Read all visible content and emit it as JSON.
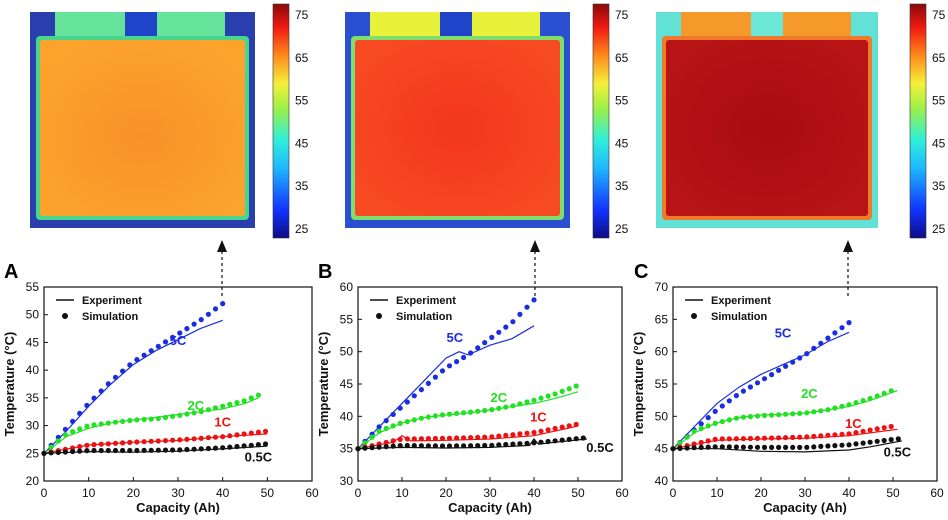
{
  "colors": {
    "s5C": "#1a2ee0",
    "s2C": "#22e022",
    "s1C": "#ee1111",
    "s05C": "#111111",
    "axis": "#111111"
  },
  "legend": {
    "experiment": "Experiment",
    "simulation": "Simulation"
  },
  "colorbar": {
    "min": 25,
    "max": 75,
    "ticks": [
      "75",
      "65",
      "55",
      "45",
      "35",
      "25"
    ]
  },
  "heatmaps": [
    {
      "body_color": "#fb9b2a",
      "tab_color": "#66e39a",
      "gap_color": "#1f43c9",
      "edge_color": "#48d58e",
      "frame_color": "#2a3fae"
    },
    {
      "body_color": "#f63c1e",
      "tab_color": "#e8f23a",
      "gap_color": "#1f43c9",
      "edge_color": "#7ee06a",
      "frame_color": "#2a4fd0"
    },
    {
      "body_color": "#b30f12",
      "tab_color": "#f59a2a",
      "gap_color": "#6de8d8",
      "edge_color": "#f07a2a",
      "frame_color": "#62e2d6"
    }
  ],
  "chart_data": [
    {
      "type": "line",
      "panel": "A",
      "xlabel": "Capacity (Ah)",
      "ylabel": "Temperature (°C)",
      "xlim": [
        0,
        60
      ],
      "ylim": [
        20,
        55
      ],
      "xticks": [
        "0",
        "10",
        "20",
        "30",
        "40",
        "50",
        "60"
      ],
      "yticks": [
        "20",
        "25",
        "30",
        "35",
        "40",
        "45",
        "50",
        "55"
      ],
      "series": [
        {
          "name": "5C",
          "experiment": [
            [
              0,
              25
            ],
            [
              5,
              29
            ],
            [
              10,
              33.5
            ],
            [
              15,
              37.5
            ],
            [
              20,
              41
            ],
            [
              25,
              43.5
            ],
            [
              30,
              45.5
            ],
            [
              35,
              47.5
            ],
            [
              40,
              49
            ]
          ],
          "simulation": [
            [
              0,
              25
            ],
            [
              5,
              29.5
            ],
            [
              10,
              34
            ],
            [
              15,
              38
            ],
            [
              20,
              41.5
            ],
            [
              25,
              44
            ],
            [
              30,
              46.5
            ],
            [
              35,
              49
            ],
            [
              40,
              52
            ]
          ]
        },
        {
          "name": "2C",
          "experiment": [
            [
              0,
              25
            ],
            [
              5,
              28
            ],
            [
              10,
              29.5
            ],
            [
              15,
              30.5
            ],
            [
              20,
              31
            ],
            [
              25,
              31.5
            ],
            [
              30,
              32
            ],
            [
              35,
              32.5
            ],
            [
              40,
              33
            ],
            [
              45,
              34
            ],
            [
              48,
              35
            ]
          ],
          "simulation": [
            [
              0,
              25
            ],
            [
              5,
              28.5
            ],
            [
              10,
              30
            ],
            [
              15,
              30.5
            ],
            [
              20,
              31
            ],
            [
              25,
              31.2
            ],
            [
              30,
              31.8
            ],
            [
              35,
              32.5
            ],
            [
              40,
              33.5
            ],
            [
              45,
              34.5
            ],
            [
              48,
              35.5
            ]
          ]
        },
        {
          "name": "1C",
          "experiment": [
            [
              0,
              25
            ],
            [
              10,
              26.5
            ],
            [
              20,
              27
            ],
            [
              30,
              27.3
            ],
            [
              40,
              28
            ],
            [
              50,
              28.5
            ]
          ],
          "simulation": [
            [
              0,
              25
            ],
            [
              10,
              26.5
            ],
            [
              20,
              27
            ],
            [
              30,
              27.4
            ],
            [
              40,
              28
            ],
            [
              50,
              29
            ]
          ]
        },
        {
          "name": "0.5C",
          "experiment": [
            [
              0,
              25
            ],
            [
              10,
              25.3
            ],
            [
              20,
              25.2
            ],
            [
              30,
              25.4
            ],
            [
              40,
              25.8
            ],
            [
              50,
              26.3
            ]
          ],
          "simulation": [
            [
              0,
              25
            ],
            [
              10,
              25.5
            ],
            [
              20,
              25.5
            ],
            [
              30,
              25.6
            ],
            [
              40,
              26
            ],
            [
              50,
              26.7
            ]
          ]
        }
      ],
      "labels": {
        "5C": "5C",
        "2C": "2C",
        "1C": "1C",
        "0.5C": "0.5C"
      }
    },
    {
      "type": "line",
      "panel": "B",
      "xlabel": "Capacity (Ah)",
      "ylabel": "Temperature (°C)",
      "xlim": [
        0,
        60
      ],
      "ylim": [
        30,
        60
      ],
      "xticks": [
        "0",
        "10",
        "20",
        "30",
        "40",
        "50",
        "60"
      ],
      "yticks": [
        "30",
        "35",
        "40",
        "45",
        "50",
        "55",
        "60"
      ],
      "series": [
        {
          "name": "5C",
          "experiment": [
            [
              0,
              35
            ],
            [
              5,
              38.5
            ],
            [
              10,
              42
            ],
            [
              15,
              45.5
            ],
            [
              20,
              49
            ],
            [
              23,
              50
            ],
            [
              25,
              49.5
            ],
            [
              30,
              51
            ],
            [
              35,
              52
            ],
            [
              40,
              54
            ]
          ],
          "simulation": [
            [
              0,
              35
            ],
            [
              5,
              38.5
            ],
            [
              10,
              41.5
            ],
            [
              15,
              44.5
            ],
            [
              20,
              47.5
            ],
            [
              25,
              49.5
            ],
            [
              30,
              52
            ],
            [
              35,
              54.5
            ],
            [
              40,
              58
            ]
          ]
        },
        {
          "name": "2C",
          "experiment": [
            [
              0,
              35
            ],
            [
              5,
              37.5
            ],
            [
              10,
              39
            ],
            [
              15,
              39.8
            ],
            [
              20,
              40.2
            ],
            [
              25,
              40.5
            ],
            [
              30,
              41
            ],
            [
              35,
              41.5
            ],
            [
              40,
              42
            ],
            [
              45,
              42.8
            ],
            [
              50,
              43.8
            ]
          ],
          "simulation": [
            [
              0,
              35
            ],
            [
              5,
              37.8
            ],
            [
              10,
              39
            ],
            [
              15,
              39.8
            ],
            [
              20,
              40.3
            ],
            [
              25,
              40.6
            ],
            [
              30,
              41
            ],
            [
              35,
              41.6
            ],
            [
              40,
              42.5
            ],
            [
              45,
              43.5
            ],
            [
              50,
              44.8
            ]
          ]
        },
        {
          "name": "1C",
          "experiment": [
            [
              0,
              35
            ],
            [
              8,
              36
            ],
            [
              10,
              37
            ],
            [
              12,
              36.2
            ],
            [
              20,
              36.3
            ],
            [
              30,
              36.5
            ],
            [
              40,
              37
            ],
            [
              50,
              38.5
            ]
          ],
          "simulation": [
            [
              0,
              35
            ],
            [
              10,
              36.5
            ],
            [
              20,
              36.6
            ],
            [
              30,
              36.8
            ],
            [
              40,
              37.5
            ],
            [
              50,
              38.8
            ]
          ]
        },
        {
          "name": "0.5C",
          "experiment": [
            [
              0,
              35
            ],
            [
              10,
              35.2
            ],
            [
              20,
              35.1
            ],
            [
              30,
              35.2
            ],
            [
              39,
              35.5
            ],
            [
              40,
              36.5
            ],
            [
              41,
              35.7
            ],
            [
              45,
              36
            ],
            [
              52,
              36.5
            ]
          ],
          "simulation": [
            [
              0,
              35
            ],
            [
              10,
              35.5
            ],
            [
              20,
              35.4
            ],
            [
              30,
              35.5
            ],
            [
              40,
              35.9
            ],
            [
              52,
              36.7
            ]
          ]
        }
      ],
      "labels": {
        "5C": "5C",
        "2C": "2C",
        "1C": "1C",
        "0.5C": "0.5C"
      }
    },
    {
      "type": "line",
      "panel": "C",
      "xlabel": "Capacity (Ah)",
      "ylabel": "Temperature (°C)",
      "xlim": [
        0,
        60
      ],
      "ylim": [
        40,
        70
      ],
      "xticks": [
        "0",
        "10",
        "20",
        "30",
        "40",
        "50",
        "60"
      ],
      "yticks": [
        "40",
        "45",
        "50",
        "55",
        "60",
        "65",
        "70"
      ],
      "series": [
        {
          "name": "5C",
          "experiment": [
            [
              0,
              45
            ],
            [
              5,
              48.5
            ],
            [
              10,
              52
            ],
            [
              15,
              54.5
            ],
            [
              20,
              56.5
            ],
            [
              25,
              58
            ],
            [
              30,
              59.5
            ],
            [
              35,
              61.5
            ],
            [
              40,
              63
            ]
          ],
          "simulation": [
            [
              0,
              45
            ],
            [
              5,
              48
            ],
            [
              10,
              51
            ],
            [
              15,
              53.5
            ],
            [
              20,
              55.5
            ],
            [
              25,
              57.5
            ],
            [
              30,
              59.5
            ],
            [
              35,
              62
            ],
            [
              40,
              64.5
            ]
          ]
        },
        {
          "name": "2C",
          "experiment": [
            [
              0,
              45
            ],
            [
              5,
              47.5
            ],
            [
              10,
              49
            ],
            [
              15,
              49.8
            ],
            [
              20,
              50.2
            ],
            [
              25,
              50.3
            ],
            [
              30,
              50.5
            ],
            [
              35,
              51
            ],
            [
              40,
              51.5
            ],
            [
              45,
              52.5
            ],
            [
              51,
              54
            ]
          ],
          "simulation": [
            [
              0,
              45
            ],
            [
              5,
              47.8
            ],
            [
              10,
              49
            ],
            [
              15,
              49.8
            ],
            [
              20,
              50.1
            ],
            [
              25,
              50.3
            ],
            [
              30,
              50.5
            ],
            [
              35,
              51
            ],
            [
              40,
              51.8
            ],
            [
              45,
              52.8
            ],
            [
              51,
              54.3
            ]
          ]
        },
        {
          "name": "1C",
          "experiment": [
            [
              0,
              45
            ],
            [
              10,
              46.3
            ],
            [
              20,
              46.5
            ],
            [
              30,
              46.6
            ],
            [
              40,
              47
            ],
            [
              51,
              48
            ]
          ],
          "simulation": [
            [
              0,
              45
            ],
            [
              10,
              46.5
            ],
            [
              20,
              46.6
            ],
            [
              30,
              46.8
            ],
            [
              40,
              47.3
            ],
            [
              51,
              48.6
            ]
          ]
        },
        {
          "name": "0.5C",
          "experiment": [
            [
              0,
              45
            ],
            [
              10,
              45
            ],
            [
              20,
              44.6
            ],
            [
              30,
              44.5
            ],
            [
              40,
              44.8
            ],
            [
              45,
              45.3
            ],
            [
              52,
              46.2
            ]
          ],
          "simulation": [
            [
              0,
              45
            ],
            [
              10,
              45.3
            ],
            [
              20,
              45.2
            ],
            [
              30,
              45.2
            ],
            [
              40,
              45.6
            ],
            [
              52,
              46.6
            ]
          ]
        }
      ],
      "labels": {
        "5C": "5C",
        "2C": "2C",
        "1C": "1C",
        "0.5C": "0.5C"
      }
    }
  ]
}
